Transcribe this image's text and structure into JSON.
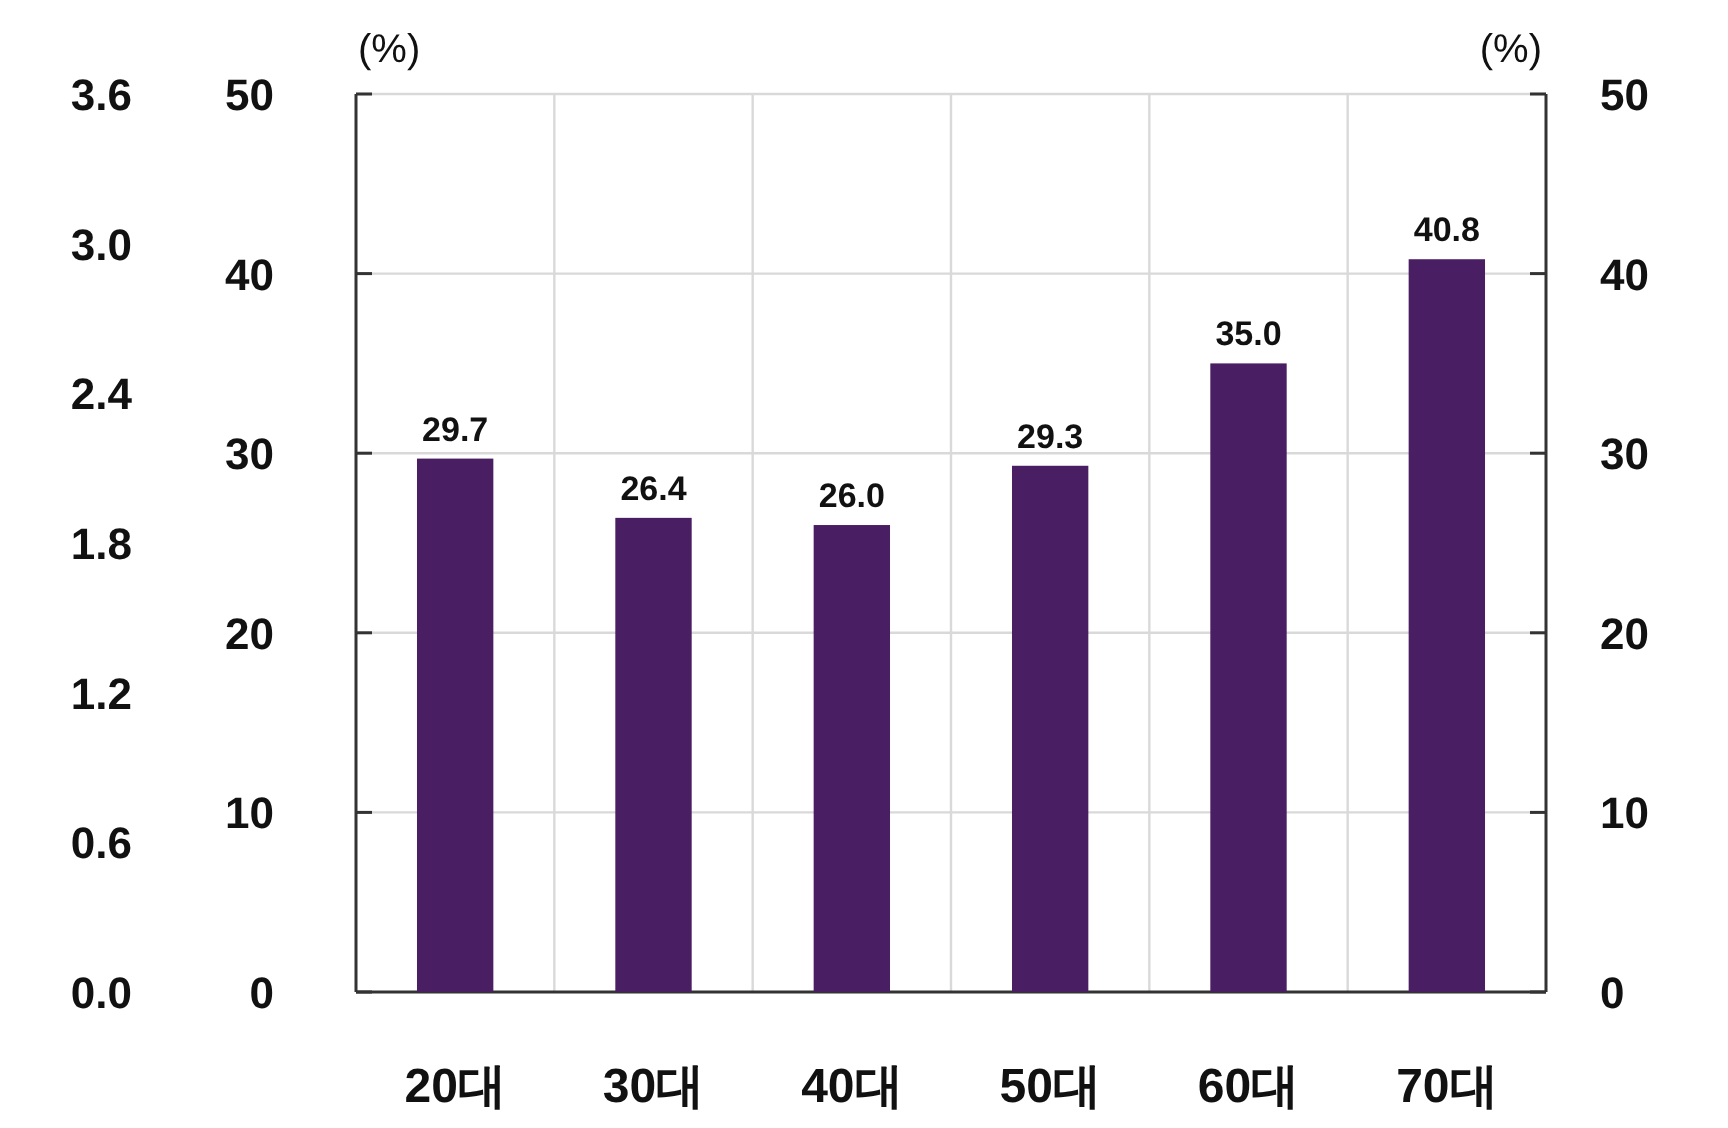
{
  "chart_data": {
    "type": "bar",
    "ylabel": "(%)",
    "y2label": "(%)",
    "categories": [
      "20대",
      "30대",
      "40대",
      "50대",
      "60대",
      "70대"
    ],
    "values": [
      29.7,
      26.4,
      26.0,
      29.3,
      35.0,
      40.8
    ],
    "value_labels": [
      "29.7",
      "26.4",
      "26.0",
      "29.3",
      "35.0",
      "40.8"
    ],
    "color": "#4a1e62",
    "ylim": [
      0,
      50
    ],
    "yticks": [
      0,
      10,
      20,
      30,
      40,
      50
    ],
    "y2lim": [
      0,
      50
    ],
    "y2ticks": [
      0,
      10,
      20,
      30,
      40,
      50
    ],
    "y3lim": [
      0,
      3.6
    ],
    "y3ticks": [
      {
        "value": 0,
        "label": "0.0"
      },
      0.6,
      1.2,
      1.8,
      2.4,
      {
        "value": 3,
        "label": "3.0"
      },
      3.6
    ],
    "grid": true
  }
}
